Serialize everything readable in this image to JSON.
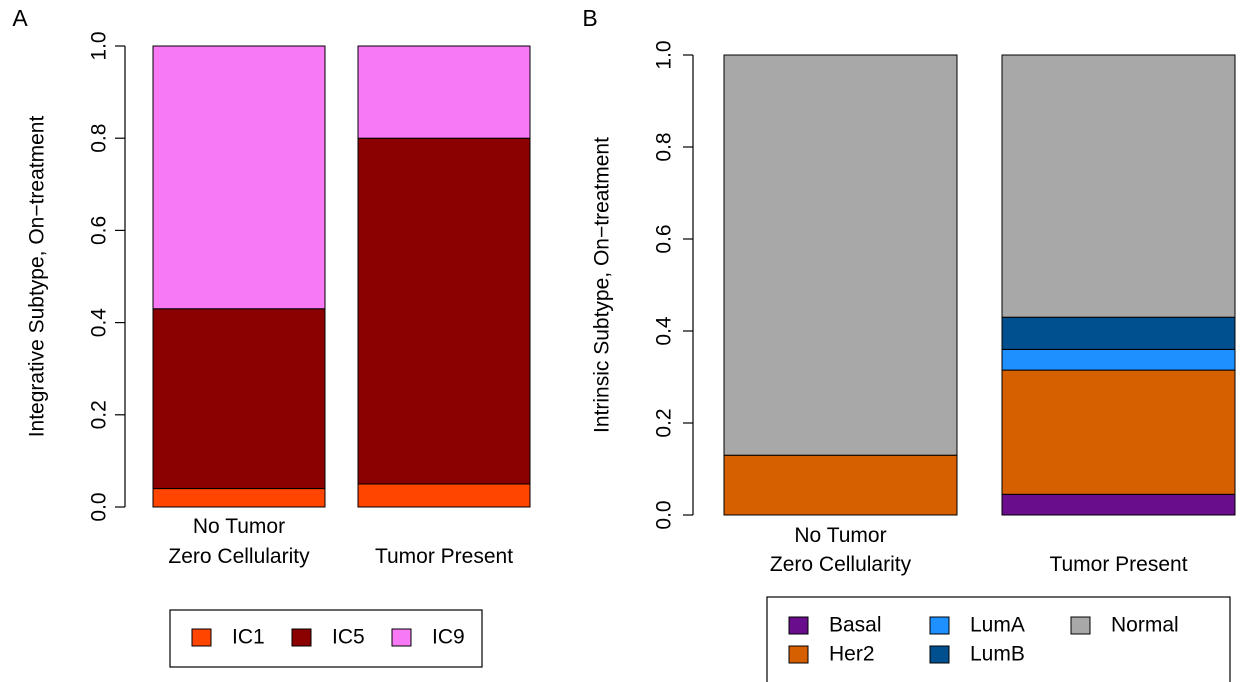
{
  "chart_data": [
    {
      "type": "stacked_bar",
      "panel": "A",
      "y_label": "Integrative Subtype, On−treatment",
      "categories": [
        "No Tumor\nZero Cellularity",
        "Tumor Present"
      ],
      "series": [
        {
          "name": "IC1",
          "color": "#ff4500",
          "values": [
            0.04,
            0.05
          ]
        },
        {
          "name": "IC5",
          "color": "#8b0000",
          "values": [
            0.39,
            0.75
          ]
        },
        {
          "name": "IC9",
          "color": "#f779f5",
          "values": [
            0.57,
            0.2
          ]
        }
      ],
      "ylim": [
        0,
        1
      ],
      "yticks": [
        {
          "value": 0,
          "label": "0.0"
        },
        0.2,
        0.4,
        0.6,
        0.8,
        {
          "value": 1,
          "label": "1.0"
        }
      ],
      "legend": "bottom"
    },
    {
      "type": "stacked_bar",
      "panel": "B",
      "y_label": "Intrinsic Subtype, On−treatment",
      "categories": [
        "No Tumor\nZero Cellularity",
        "Tumor Present"
      ],
      "series": [
        {
          "name": "Basal",
          "color": "#6a0d8c",
          "values": [
            0,
            0.045
          ]
        },
        {
          "name": "Her2",
          "color": "#d65f00",
          "values": [
            0.13,
            0.27
          ]
        },
        {
          "name": "LumA",
          "color": "#1e90ff",
          "values": [
            0,
            0.045
          ]
        },
        {
          "name": "LumB",
          "color": "#004f8f",
          "values": [
            0,
            0.07
          ]
        },
        {
          "name": "Normal",
          "color": "#a8a8a8",
          "values": [
            0.87,
            0.57
          ]
        }
      ],
      "ylim": [
        0,
        1
      ],
      "yticks": [
        {
          "value": 0,
          "label": "0.0"
        },
        0.2,
        0.4,
        0.6,
        0.8,
        {
          "value": 1,
          "label": "1.0"
        }
      ],
      "legend": "bottom"
    }
  ]
}
